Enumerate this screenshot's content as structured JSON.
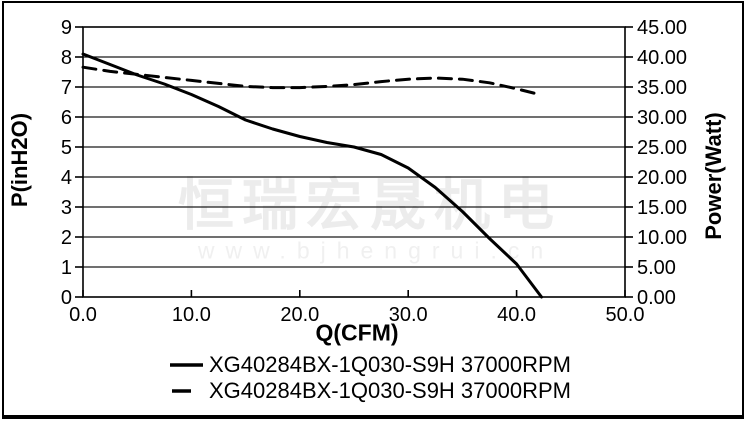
{
  "watermark": {
    "cjk_text": "恒瑞宏晟机电",
    "url_text": "www.bjhengrui.cn",
    "cjk_color": "#ececec",
    "url_color": "#f0f0f0"
  },
  "colors": {
    "line": "#000000",
    "grid": "#1a1a1a",
    "background": "#ffffff"
  },
  "chart_data": {
    "type": "line",
    "title": "",
    "xlabel": "Q(CFM)",
    "ylabel_left": "P(inH2O)",
    "ylabel_right": "Power(Watt)",
    "xlim": [
      0,
      50
    ],
    "ylim_left": [
      0,
      9
    ],
    "ylim_right": [
      0,
      45
    ],
    "x_tick_labels": [
      "0.0",
      "10.0",
      "20.0",
      "30.0",
      "40.0",
      "50.0"
    ],
    "y_tick_labels_left": [
      "0",
      "1",
      "2",
      "3",
      "4",
      "5",
      "6",
      "7",
      "8",
      "9"
    ],
    "y_tick_labels_right": [
      "0.00",
      "5.00",
      "10.00",
      "15.00",
      "20.00",
      "25.00",
      "30.00",
      "35.00",
      "40.00",
      "45.00"
    ],
    "grid": "horizontal",
    "legend_position": "bottom",
    "series": [
      {
        "name": "XG40284BX-1Q030-S9H 37000RPM",
        "axis": "left",
        "style": "solid",
        "x": [
          0,
          2.5,
          5,
          7.5,
          10,
          12.5,
          15,
          17.5,
          20,
          22.5,
          25,
          27.5,
          30,
          32.5,
          35,
          37.5,
          40,
          42.3
        ],
        "y": [
          8.1,
          7.75,
          7.4,
          7.1,
          6.75,
          6.35,
          5.9,
          5.6,
          5.35,
          5.15,
          5.0,
          4.75,
          4.3,
          3.65,
          2.85,
          1.95,
          1.1,
          0
        ]
      },
      {
        "name": "XG40284BX-1Q030-S9H 37000RPM",
        "axis": "right",
        "style": "dashed",
        "x": [
          0,
          2.5,
          5,
          7.5,
          10,
          12.5,
          15,
          17.5,
          20,
          22.5,
          25,
          27.5,
          30,
          32.5,
          35,
          37.5,
          40,
          42
        ],
        "y": [
          38.3,
          37.6,
          37.1,
          36.6,
          36.1,
          35.6,
          35.1,
          34.9,
          34.9,
          35.1,
          35.4,
          35.9,
          36.3,
          36.5,
          36.3,
          35.7,
          34.7,
          33.8
        ]
      }
    ]
  }
}
